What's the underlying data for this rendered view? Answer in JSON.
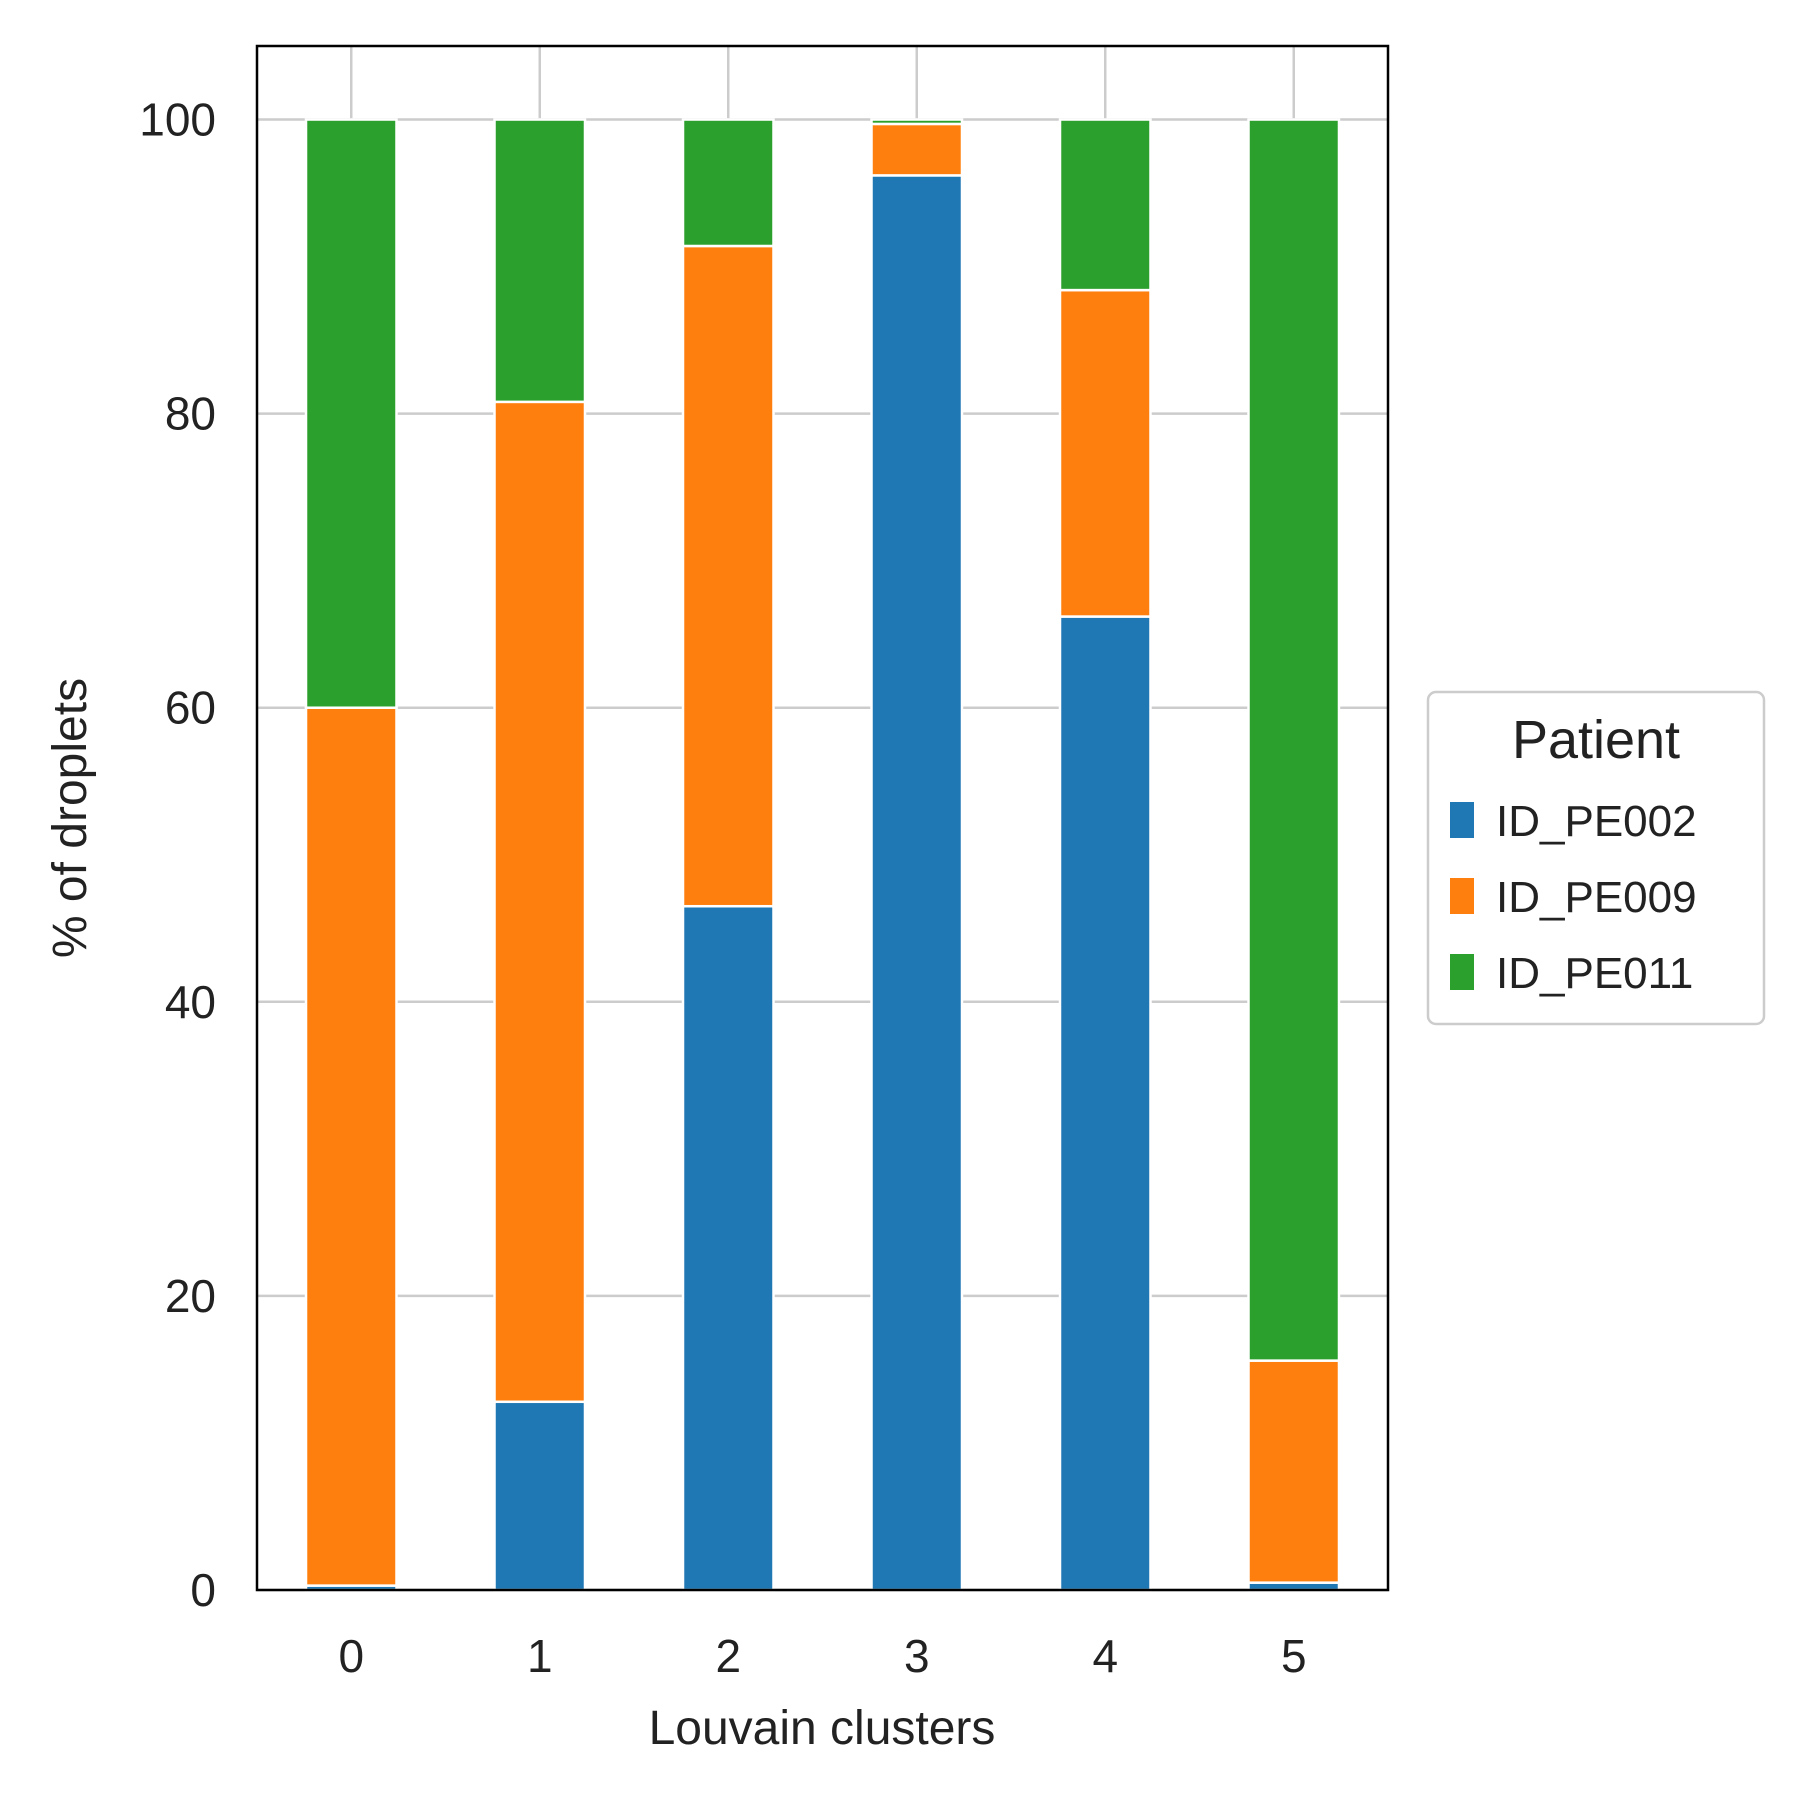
{
  "chart_data": {
    "type": "bar",
    "stacked": true,
    "xlabel": "Louvain clusters",
    "ylabel": "% of droplets",
    "categories": [
      "0",
      "1",
      "2",
      "3",
      "4",
      "5"
    ],
    "ylim": [
      0,
      105
    ],
    "yticks": [
      0,
      20,
      40,
      60,
      80,
      100
    ],
    "grid": true,
    "legend": {
      "title": "Patient",
      "placement": "right"
    },
    "series": [
      {
        "name": "ID_PE002",
        "color": "#1f77b4",
        "values": [
          0.3,
          12.8,
          46.5,
          96.2,
          66.2,
          0.5
        ]
      },
      {
        "name": "ID_PE009",
        "color": "#ff7f0e",
        "values": [
          59.7,
          68.0,
          44.9,
          3.5,
          22.2,
          15.1
        ]
      },
      {
        "name": "ID_PE011",
        "color": "#2ca02c",
        "values": [
          40.0,
          19.2,
          8.6,
          0.3,
          11.6,
          84.4
        ]
      }
    ]
  }
}
